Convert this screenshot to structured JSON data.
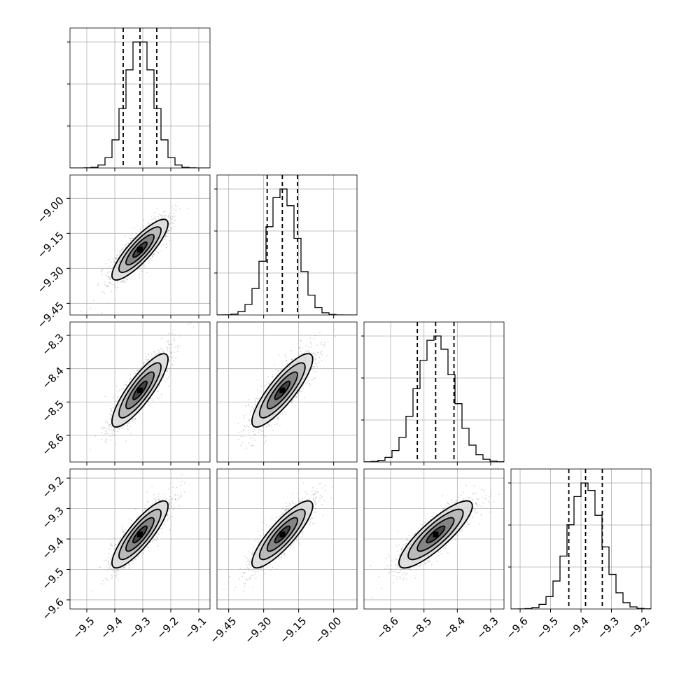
{
  "chart_data": {
    "type": "corner",
    "parameters": [
      {
        "index": 0,
        "range": [
          -9.56,
          -9.06
        ],
        "ticks": [
          -9.5,
          -9.4,
          -9.3,
          -9.2,
          -9.1
        ],
        "tick_labels": [
          "−9.5",
          "−9.4",
          "−9.3",
          "−9.2",
          "−9.1"
        ],
        "mean": -9.31,
        "sigma": 0.05,
        "quantiles": [
          -9.37,
          -9.31,
          -9.25
        ]
      },
      {
        "index": 1,
        "range": [
          -9.5,
          -8.9
        ],
        "ticks": [
          -9.45,
          -9.3,
          -9.15,
          -9.0
        ],
        "tick_labels": [
          "−9.45",
          "−9.30",
          "−9.15",
          "−9.00"
        ],
        "mean": -9.22,
        "sigma": 0.065,
        "quantiles": [
          -9.285,
          -9.22,
          -9.155
        ]
      },
      {
        "index": 2,
        "range": [
          -8.68,
          -8.26
        ],
        "ticks": [
          -8.6,
          -8.5,
          -8.4,
          -8.3
        ],
        "tick_labels": [
          "−8.6",
          "−8.5",
          "−8.4",
          "−8.3"
        ],
        "mean": -8.465,
        "sigma": 0.055,
        "quantiles": [
          -8.52,
          -8.465,
          -8.41
        ]
      },
      {
        "index": 3,
        "range": [
          -9.63,
          -9.17
        ],
        "ticks": [
          -9.6,
          -9.5,
          -9.4,
          -9.3,
          -9.2
        ],
        "tick_labels": [
          "−9.6",
          "−9.5",
          "−9.4",
          "−9.3",
          "−9.2"
        ],
        "mean": -9.385,
        "sigma": 0.055,
        "quantiles": [
          -9.44,
          -9.385,
          -9.33
        ]
      }
    ],
    "correlation": 0.85,
    "grid": true,
    "histogram_yticks": 3,
    "contour_levels_sigma": [
      0.5,
      1.0,
      1.5,
      2.0
    ],
    "title": "",
    "xlabel": "",
    "ylabel": ""
  }
}
